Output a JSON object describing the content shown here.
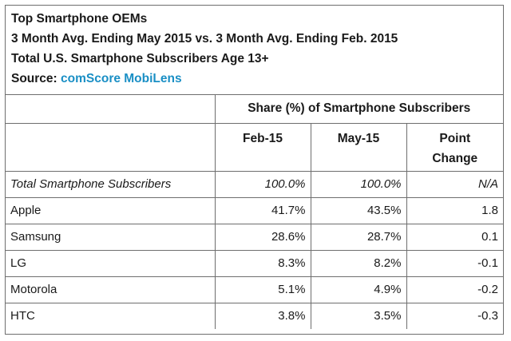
{
  "title_lines": [
    "Top Smartphone OEMs",
    "3 Month Avg. Ending May 2015 vs. 3 Month Avg. Ending Feb. 2015",
    "Total U.S. Smartphone Subscribers Age 13+"
  ],
  "source": {
    "label": "Source: ",
    "name": "comScore MobiLens",
    "color": "#1a8fc5"
  },
  "chart_data": {
    "type": "table",
    "group_header": "Share (%) of Smartphone Subscribers",
    "columns": [
      "Feb-15",
      "May-15",
      "Point Change"
    ],
    "rows": [
      {
        "label": "Total Smartphone Subscribers",
        "values": [
          "100.0%",
          "100.0%",
          "N/A"
        ],
        "italic": true
      },
      {
        "label": "Apple",
        "values": [
          "41.7%",
          "43.5%",
          "1.8"
        ]
      },
      {
        "label": "Samsung",
        "values": [
          "28.6%",
          "28.7%",
          "0.1"
        ]
      },
      {
        "label": "LG",
        "values": [
          "8.3%",
          "8.2%",
          "-0.1"
        ]
      },
      {
        "label": "Motorola",
        "values": [
          "5.1%",
          "4.9%",
          "-0.2"
        ]
      },
      {
        "label": "HTC",
        "values": [
          "3.8%",
          "3.5%",
          "-0.3"
        ]
      }
    ]
  }
}
